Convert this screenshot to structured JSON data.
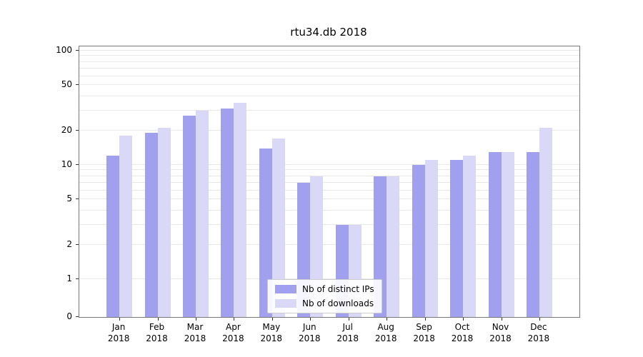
{
  "chart_data": {
    "type": "bar",
    "title": "rtu34.db 2018",
    "categories": [
      "Jan 2018",
      "Feb 2018",
      "Mar 2018",
      "Apr 2018",
      "May 2018",
      "Jun 2018",
      "Jul 2018",
      "Aug 2018",
      "Sep 2018",
      "Oct 2018",
      "Nov 2018",
      "Dec 2018"
    ],
    "series": [
      {
        "name": "Nb of distinct IPs",
        "color": "#a0a0ee",
        "values": [
          12,
          19,
          27,
          31,
          14,
          7,
          3,
          8,
          10,
          11,
          13,
          13
        ]
      },
      {
        "name": "Nb of downloads",
        "color": "#d9d9f7",
        "values": [
          18,
          21,
          30,
          35,
          17,
          8,
          3,
          8,
          11,
          12,
          13,
          21
        ]
      }
    ],
    "yscale": "symlog",
    "ylim": [
      0,
      110
    ],
    "ytick_values": [
      0,
      1,
      2,
      5,
      10,
      20,
      50,
      100
    ],
    "grid_values": [
      1,
      2,
      3,
      4,
      5,
      6,
      7,
      8,
      9,
      10,
      20,
      30,
      40,
      50,
      60,
      70,
      80,
      90,
      100
    ],
    "grid": true,
    "legend_position": "lower center",
    "xlabel": "",
    "ylabel": ""
  },
  "style": {
    "grid_color": "#e7e7e7",
    "axis_color": "#787878",
    "tick_color": "#333333",
    "text_color": "#000000",
    "legend_border": "#cccccc",
    "legend_bg": "#ffffff",
    "background": "#ffffff"
  }
}
